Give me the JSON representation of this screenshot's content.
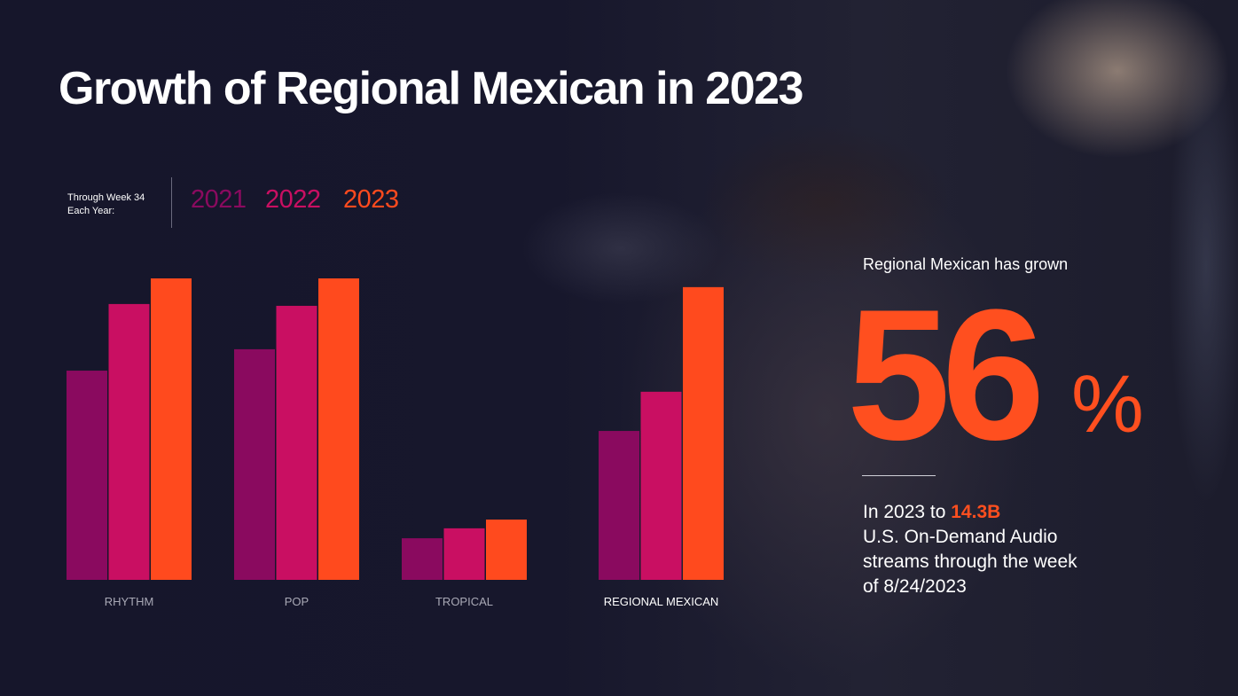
{
  "title": "Growth of Regional Mexican in 2023",
  "legend": {
    "caption_line1": "Through Week 34",
    "caption_line2": "Each Year:",
    "years": [
      {
        "label": "2021",
        "color": "#8a0a5f"
      },
      {
        "label": "2022",
        "color": "#c90f62"
      },
      {
        "label": "2023",
        "color": "#ff4a1e"
      }
    ]
  },
  "chart_data": {
    "type": "bar",
    "title": "",
    "xlabel": "",
    "ylabel": "",
    "categories": [
      "RHYTHM",
      "POP",
      "TROPICAL",
      "REGIONAL MEXICAN"
    ],
    "highlight_category": "REGIONAL MEXICAN",
    "series": [
      {
        "name": "2021",
        "values": [
          69.4,
          76.5,
          13.8,
          49.4
        ]
      },
      {
        "name": "2022",
        "values": [
          91.5,
          90.9,
          17.1,
          62.4
        ]
      },
      {
        "name": "2023",
        "values": [
          100.0,
          100.0,
          20.0,
          97.1
        ]
      }
    ],
    "ylim": [
      0,
      100
    ],
    "grid": false,
    "legend": "top-left"
  },
  "callout": {
    "lead": "Regional Mexican has grown",
    "value": "56",
    "unit": "%",
    "body_prefix": "In 2023 to ",
    "body_highlight": "14.3B",
    "body_rest": "U.S. On-Demand Audio streams through the week of 8/24/2023"
  }
}
